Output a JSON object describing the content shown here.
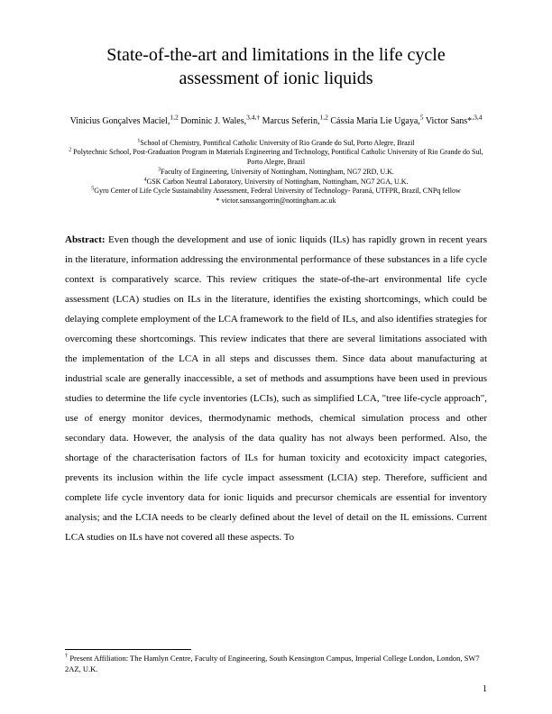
{
  "title": "State-of-the-art and limitations in the life cycle assessment of ionic liquids",
  "authors_html": "Vinicius Gonçalves Maciel,<sup>1,2</sup> Dominic J. Wales,<sup>3,4,†</sup> Marcus Seferin,<sup>1,2</sup> Cássia Maria Lie Ugaya,<sup>5</sup> Victor Sans*<sup>,3,4</sup>",
  "affiliations_html": "<sup>1</sup>School of Chemistry, Pontifical Catholic University of Rio Grande do Sul, Porto Alegre, Brazil<br><sup>2</sup> Polytechnic School, Post-Graduation Program in Materials Engineering and Technology, Pontifical Catholic University of Rio Grande do Sul, Porto Alegre, Brazil<br><sup>3</sup>Faculty of Engineering, University of Nottingham, Nottingham, NG7 2RD, U.K.<br><sup>4</sup>GSK Carbon Neutral Laboratory, University of Nottingham, Nottingham, NG7 2GA, U.K.<br><sup>5</sup>Gyro Center of Life Cycle Sustainability Assessment, Federal University of Technology- Paraná, UTFPR, Brazil, CNPq fellow<br>* victor.sanssangorrin@nottingham.ac.uk",
  "abstract_label": "Abstract:",
  "abstract_body": " Even though the development and use of ionic liquids (ILs) has rapidly grown in recent years in the literature, information addressing the environmental performance of these substances in a life cycle context is comparatively scarce. This review critiques the state-of-the-art environmental life cycle assessment (LCA) studies on ILs in the literature, identifies the existing shortcomings, which could be delaying complete employment of the LCA framework to the field of ILs, and also identifies strategies for overcoming these shortcomings. This review indicates that there are several limitations associated with the implementation of the LCA in all steps and discusses them. Since data about manufacturing at industrial scale are generally inaccessible, a set of methods and assumptions have been used in previous studies to determine the life cycle inventories (LCIs), such as simplified LCA, \"tree life-cycle approach\", use of energy monitor devices, thermodynamic methods, chemical simulation process and other secondary data. However, the analysis of the data quality has not always been performed. Also, the shortage of the characterisation factors of ILs for human toxicity and ecotoxicity impact categories, prevents its inclusion within the life cycle impact assessment (LCIA) step. Therefore, sufficient and complete life cycle inventory data for ionic liquids and precursor chemicals are essential for inventory analysis; and the LCIA needs to be clearly defined about the level of detail on the IL emissions. Current LCA studies on ILs have not covered all these aspects. To",
  "footnote_html": "<sup>†</sup> Present Affiliation: The Hamlyn Centre, Faculty of Engineering, South Kensington Campus, Imperial College London, London, SW7 2AZ, U.K.",
  "page_number": "1"
}
